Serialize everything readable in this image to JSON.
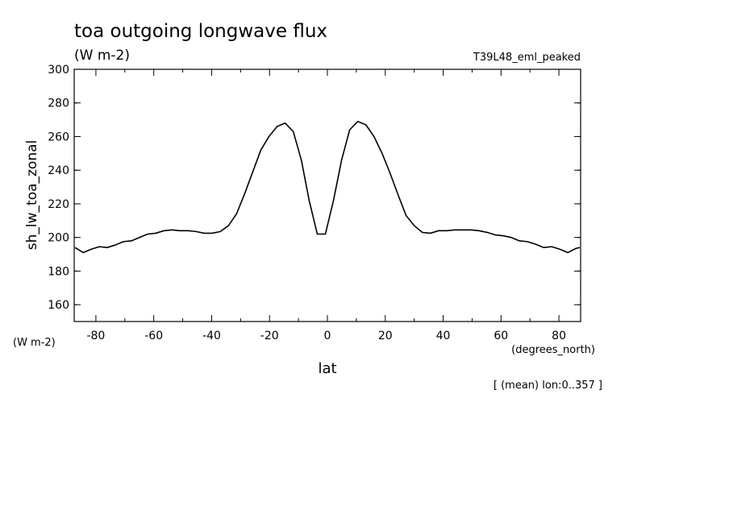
{
  "chart_data": {
    "type": "line",
    "title": "toa outgoing longwave flux",
    "units": "(W m-2)",
    "dataset": "T39L48_eml_peaked",
    "ylabel": "sh_lw_toa_zonal",
    "yunits": "(W m-2)",
    "xlabel": "lat",
    "xunits": "(degrees_north)",
    "footnote": "[ (mean) lon:0..357 ]",
    "xlim": [
      -87.5,
      87.5
    ],
    "ylim": [
      150,
      300
    ],
    "xticks": [
      -80,
      -60,
      -40,
      -20,
      0,
      20,
      40,
      60,
      80
    ],
    "xtick_labels": [
      "-80",
      "-60",
      "-40",
      "-20",
      "0",
      "20",
      "40",
      "60",
      "80"
    ],
    "yticks": [
      160,
      180,
      200,
      220,
      240,
      260,
      280,
      300
    ],
    "ytick_labels": [
      "160",
      "180",
      "200",
      "220",
      "240",
      "260",
      "280",
      "300"
    ],
    "line_color": "#000000",
    "grid": false,
    "series": [
      {
        "x": [
          -87.2,
          -84.4,
          -81.6,
          -78.8,
          -76.1,
          -73.3,
          -70.5,
          -67.7,
          -64.9,
          -62.1,
          -59.3,
          -56.5,
          -53.7,
          -50.9,
          -48.1,
          -45.3,
          -42.6,
          -39.8,
          -37.0,
          -34.2,
          -31.4,
          -28.6,
          -25.8,
          -23.0,
          -20.2,
          -17.4,
          -14.6,
          -11.8,
          -9.0,
          -6.3,
          -3.5,
          -0.7,
          2.1,
          4.9,
          7.7,
          10.5,
          13.3,
          16.1,
          18.9,
          21.7,
          24.5,
          27.2,
          30.0,
          32.8,
          35.6,
          38.4,
          41.2,
          44.0,
          46.8,
          49.6,
          52.4,
          55.2,
          58.0,
          60.7,
          63.5,
          66.3,
          69.1,
          71.9,
          74.7,
          77.5,
          80.3,
          83.1,
          85.9,
          87.2
        ],
        "y": [
          194,
          191,
          193,
          194.5,
          194,
          195.5,
          197.5,
          198,
          200,
          202,
          202.5,
          204,
          204.5,
          204,
          204,
          203.5,
          202.5,
          202.5,
          203.5,
          207,
          214,
          226,
          239,
          252,
          260,
          266,
          268,
          263,
          246,
          222,
          202,
          202,
          222,
          246,
          264,
          269,
          267,
          260,
          250,
          238,
          225,
          213,
          207,
          203,
          202.5,
          204,
          204,
          204.5,
          204.5,
          204.5,
          204,
          203,
          201.5,
          201,
          200,
          198,
          197.5,
          196,
          194,
          194.5,
          193,
          191,
          193.5,
          194
        ]
      }
    ]
  }
}
